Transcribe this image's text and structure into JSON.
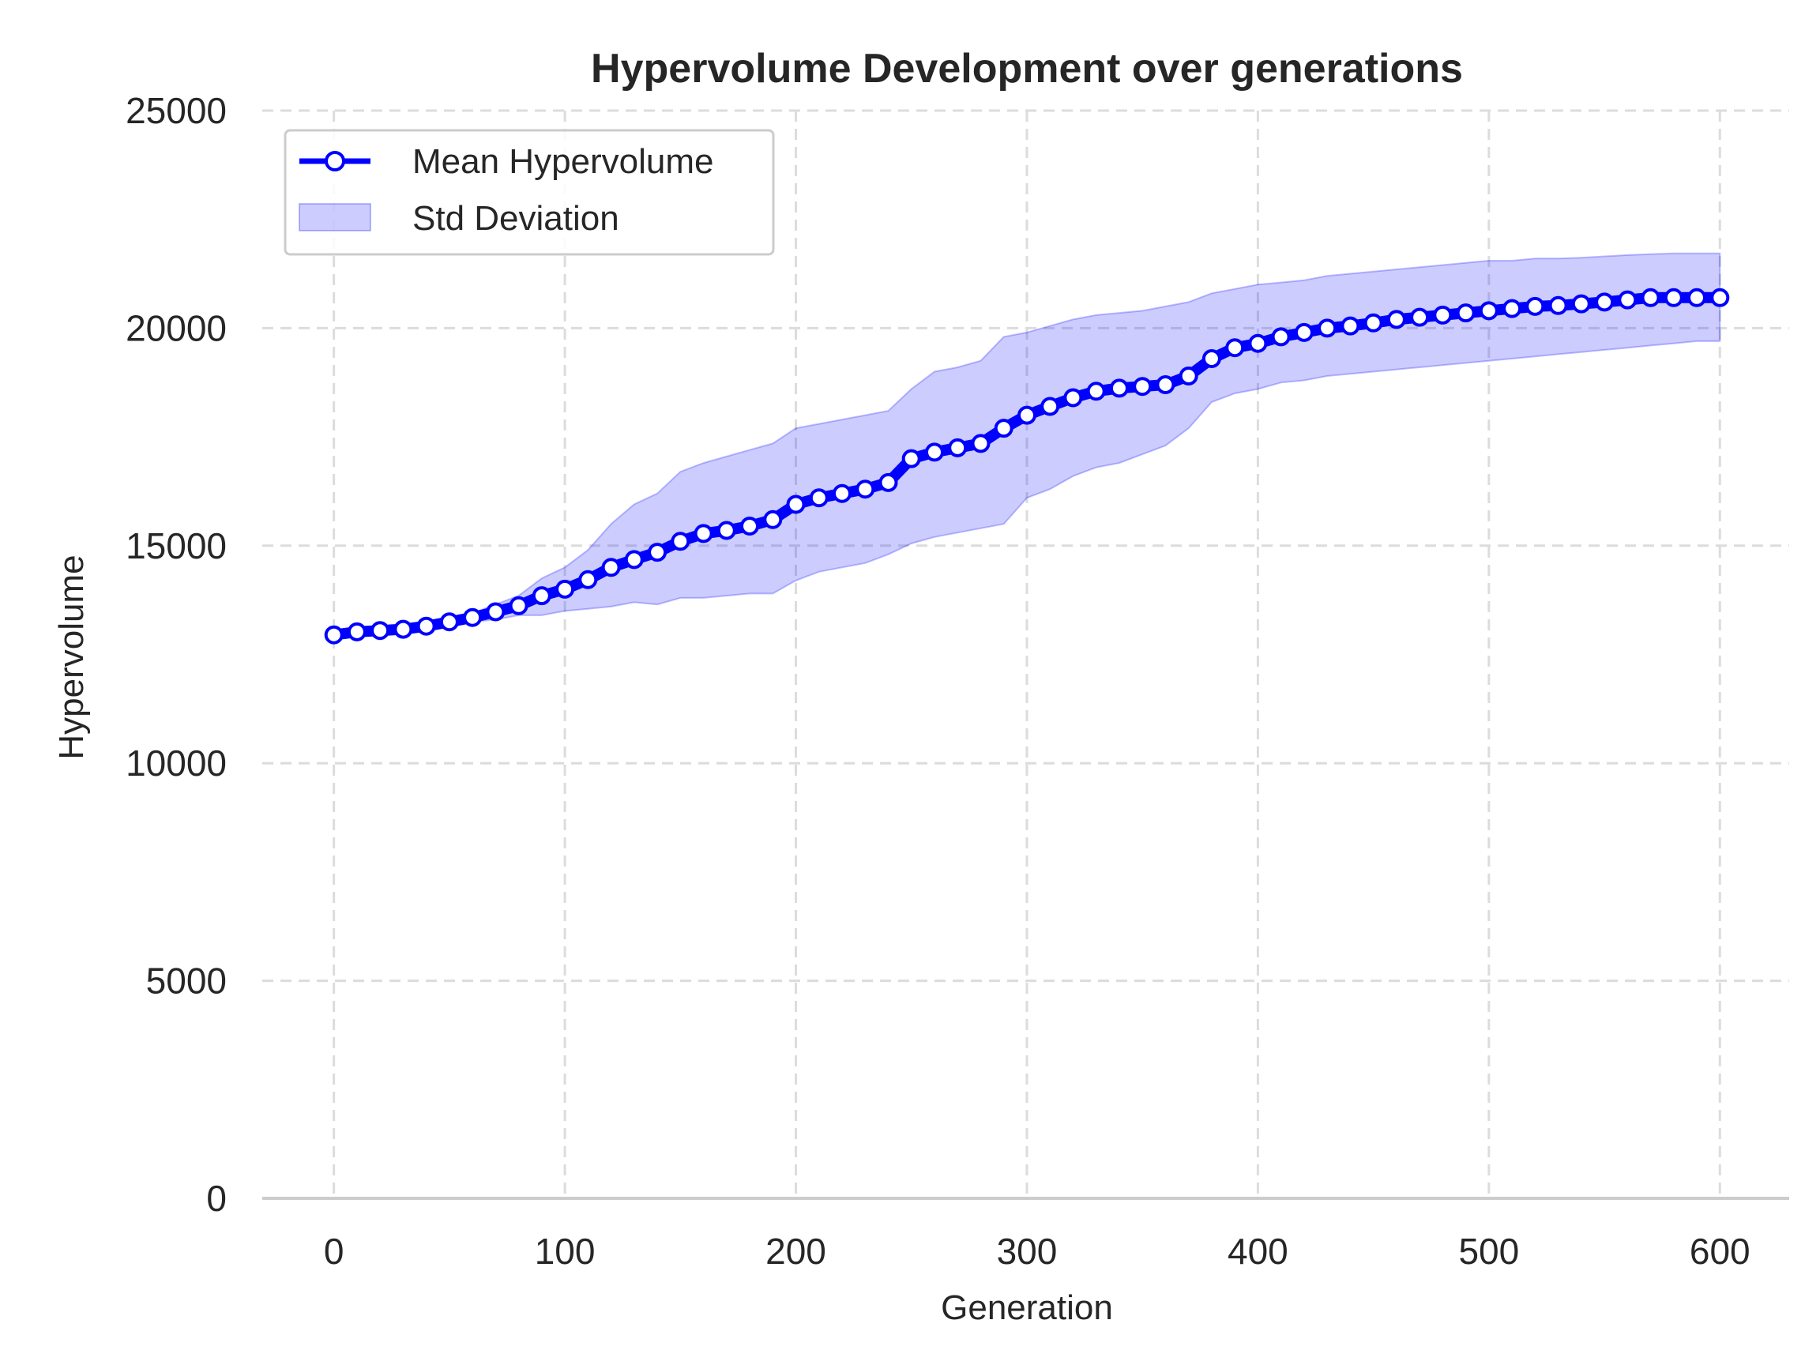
{
  "chart_data": {
    "type": "line",
    "title": "Hypervolume Development over generations",
    "xlabel": "Generation",
    "ylabel": "Hypervolume",
    "xlim": [
      -31,
      630
    ],
    "ylim": [
      0,
      25000
    ],
    "xticks": [
      0,
      100,
      200,
      300,
      400,
      500,
      600
    ],
    "yticks": [
      0,
      5000,
      10000,
      15000,
      20000,
      25000
    ],
    "grid": true,
    "legend_position": "top-left",
    "series": [
      {
        "name": "Mean Hypervolume",
        "color": "#0000ff",
        "marker": "circle-hollow",
        "x": [
          0,
          10,
          20,
          30,
          40,
          50,
          60,
          70,
          80,
          90,
          100,
          110,
          120,
          130,
          140,
          150,
          160,
          170,
          180,
          190,
          200,
          210,
          220,
          230,
          240,
          250,
          260,
          270,
          280,
          290,
          300,
          310,
          320,
          330,
          340,
          350,
          360,
          370,
          380,
          390,
          400,
          410,
          420,
          430,
          440,
          450,
          460,
          470,
          480,
          490,
          500,
          510,
          520,
          530,
          540,
          550,
          560,
          570,
          580,
          590,
          600
        ],
        "values": [
          12950,
          13020,
          13050,
          13080,
          13150,
          13250,
          13350,
          13480,
          13620,
          13850,
          14000,
          14220,
          14500,
          14680,
          14850,
          15100,
          15280,
          15350,
          15450,
          15600,
          15950,
          16100,
          16200,
          16300,
          16450,
          17000,
          17150,
          17250,
          17350,
          17700,
          18000,
          18200,
          18400,
          18550,
          18620,
          18660,
          18700,
          18900,
          19300,
          19550,
          19650,
          19800,
          19900,
          20000,
          20050,
          20120,
          20200,
          20250,
          20300,
          20350,
          20400,
          20450,
          20500,
          20520,
          20560,
          20600,
          20650,
          20700,
          20700,
          20700,
          20700
        ]
      },
      {
        "name": "Std Deviation",
        "color": "#0000ff",
        "kind": "band",
        "x": [
          0,
          10,
          20,
          30,
          40,
          50,
          60,
          70,
          80,
          90,
          100,
          110,
          120,
          130,
          140,
          150,
          160,
          170,
          180,
          190,
          200,
          210,
          220,
          230,
          240,
          250,
          260,
          270,
          280,
          290,
          300,
          310,
          320,
          330,
          340,
          350,
          360,
          370,
          380,
          390,
          400,
          410,
          420,
          430,
          440,
          450,
          460,
          470,
          480,
          490,
          500,
          510,
          520,
          530,
          540,
          550,
          560,
          570,
          580,
          590,
          600
        ],
        "lower": [
          12950,
          13020,
          13050,
          13080,
          13150,
          13200,
          13250,
          13300,
          13400,
          13400,
          13500,
          13550,
          13600,
          13700,
          13650,
          13800,
          13800,
          13850,
          13900,
          13900,
          14200,
          14400,
          14500,
          14600,
          14800,
          15050,
          15200,
          15300,
          15400,
          15500,
          16100,
          16300,
          16600,
          16800,
          16900,
          17100,
          17300,
          17700,
          18300,
          18500,
          18600,
          18750,
          18800,
          18900,
          18950,
          19000,
          19050,
          19100,
          19150,
          19200,
          19250,
          19300,
          19350,
          19400,
          19450,
          19500,
          19550,
          19600,
          19650,
          19700,
          19700
        ],
        "upper": [
          12950,
          13020,
          13050,
          13080,
          13150,
          13300,
          13450,
          13650,
          13850,
          14250,
          14500,
          14900,
          15500,
          15950,
          16200,
          16700,
          16900,
          17050,
          17200,
          17350,
          17700,
          17800,
          17900,
          18000,
          18100,
          18600,
          19000,
          19100,
          19250,
          19800,
          19900,
          20050,
          20200,
          20300,
          20350,
          20400,
          20500,
          20600,
          20800,
          20900,
          21000,
          21050,
          21100,
          21200,
          21250,
          21300,
          21350,
          21400,
          21450,
          21500,
          21550,
          21550,
          21600,
          21600,
          21620,
          21650,
          21680,
          21700,
          21720,
          21720,
          21720
        ]
      }
    ]
  },
  "legend": {
    "mean_label": "Mean Hypervolume",
    "std_label": "Std Deviation"
  },
  "colors": {
    "line": "#0000ff",
    "band_fill": "#0000ff",
    "grid": "#dcdcdc",
    "text": "#262626"
  }
}
